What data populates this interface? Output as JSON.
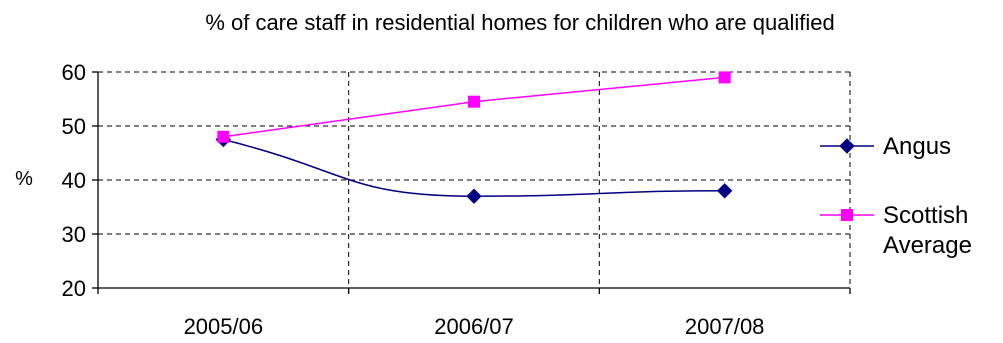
{
  "chart_data": {
    "type": "line",
    "title": "% of care staff in residential homes for children who are qualified",
    "xlabel": "",
    "ylabel": "%",
    "categories": [
      "2005/06",
      "2006/07",
      "2007/08"
    ],
    "ylim": [
      20,
      60
    ],
    "yticks": [
      20,
      30,
      40,
      50,
      60
    ],
    "grid": true,
    "legend_position": "right",
    "series": [
      {
        "name": "Angus",
        "values": [
          47.5,
          37,
          38
        ],
        "color": "#000080",
        "marker": "diamond"
      },
      {
        "name": "Scottish Average",
        "legend_lines": [
          "Scottish",
          "Average"
        ],
        "values": [
          48,
          54.5,
          59
        ],
        "color": "#ff00ff",
        "marker": "square"
      }
    ]
  }
}
